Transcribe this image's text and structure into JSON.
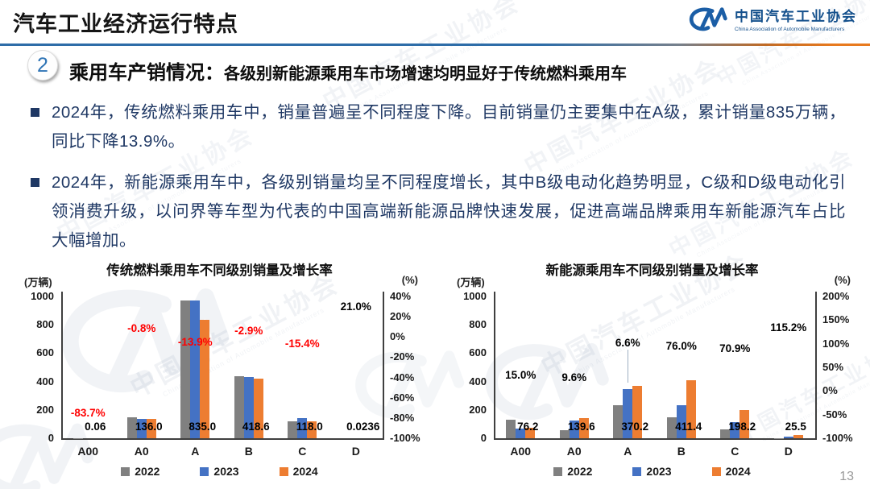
{
  "header": {
    "title": "汽车工业经济运行特点",
    "logo_cn": "中国汽车工业协会",
    "logo_en": "China Association of Automobile Manufacturers"
  },
  "section": {
    "badge": "2",
    "heading": "乘用车产销情况：",
    "subheading": "各级别新能源乘用车市场增速均明显好于传统燃料乘用车"
  },
  "bullets": [
    "2024年，传统燃料乘用车中，销量普遍呈不同程度下降。目前销量仍主要集中在A级，累计销量835万辆，同比下降13.9%。",
    "2024年，新能源乘用车中，各级别销量均呈不同程度增长，其中B级电动化趋势明显，C级和D级电动化引领消费升级，以问界等车型为代表的中国高端新能源品牌快速发展，促进高端品牌乘用车新能源汽车占比大幅增加。"
  ],
  "watermark": {
    "cn": "中国汽车工业协会",
    "en": "China Association of Automobile Manufacturers"
  },
  "colors": {
    "bar_2022": "#808080",
    "bar_2023": "#4472C4",
    "bar_2024": "#ED7D31",
    "negative_label": "#FF0000",
    "positive_label": "#000000",
    "body_text": "#1F3864",
    "accent_blue": "#2E74B5",
    "accent_orange": "#E87A1E"
  },
  "page_number": "13",
  "chart_data": [
    {
      "type": "bar",
      "title": "传统燃料乘用车不同级别销量及增长率",
      "categories": [
        "A00",
        "A0",
        "A",
        "B",
        "C",
        "D"
      ],
      "axis_left": {
        "unit": "(万辆)",
        "range": [
          0,
          1000
        ],
        "ticks": [
          0,
          200,
          400,
          600,
          800,
          1000
        ]
      },
      "axis_right": {
        "unit": "(%)",
        "range": [
          -100,
          40
        ],
        "ticks": [
          40,
          20,
          0,
          -20,
          -40,
          -60,
          -80,
          -100
        ]
      },
      "grid": false,
      "legend_position": "bottom",
      "series": [
        {
          "name": "2022",
          "color": "#808080",
          "values": [
            1.0,
            145,
            972,
            440,
            122,
            0.03
          ]
        },
        {
          "name": "2023",
          "color": "#4472C4",
          "values": [
            0.37,
            137.1,
            969.8,
            431.1,
            139.5,
            0.02
          ]
        },
        {
          "name": "2024",
          "color": "#ED7D31",
          "values": [
            0.06,
            136.0,
            835.0,
            418.6,
            118.0,
            0.0236
          ]
        }
      ],
      "value_labels": [
        "0.06",
        "136.0",
        "835.0",
        "418.6",
        "118.0",
        "0.0236"
      ],
      "growth_labels": [
        {
          "text": "-83.7%",
          "value": -83.7,
          "color": "#FF0000"
        },
        {
          "text": "-0.8%",
          "value": -0.8,
          "color": "#FF0000"
        },
        {
          "text": "-13.9%",
          "value": -13.9,
          "color": "#FF0000"
        },
        {
          "text": "-2.9%",
          "value": -2.9,
          "color": "#FF0000"
        },
        {
          "text": "-15.4%",
          "value": -15.4,
          "color": "#FF0000"
        },
        {
          "text": "21.0%",
          "value": 21.0,
          "color": "#000000"
        }
      ]
    },
    {
      "type": "bar",
      "title": "新能源乘用车不同级别销量及增长率",
      "categories": [
        "A00",
        "A0",
        "A",
        "B",
        "C",
        "D"
      ],
      "axis_left": {
        "unit": "(万辆)",
        "range": [
          0,
          1000
        ],
        "ticks": [
          0,
          200,
          400,
          600,
          800,
          1000
        ]
      },
      "axis_right": {
        "unit": "(%)",
        "range": [
          -100,
          200
        ],
        "ticks": [
          200,
          150,
          100,
          50,
          0,
          -50,
          -100
        ]
      },
      "grid": false,
      "legend_position": "bottom",
      "series": [
        {
          "name": "2022",
          "color": "#808080",
          "values": [
            130,
            55,
            235,
            150,
            65,
            2
          ]
        },
        {
          "name": "2023",
          "color": "#4472C4",
          "values": [
            66.3,
            127.4,
            347.3,
            233.8,
            116.0,
            11.9
          ]
        },
        {
          "name": "2024",
          "color": "#ED7D31",
          "values": [
            76.2,
            139.6,
            370.2,
            411.4,
            198.2,
            25.5
          ]
        }
      ],
      "value_labels": [
        "76.2",
        "139.6",
        "370.2",
        "411.4",
        "198.2",
        "25.5"
      ],
      "growth_labels": [
        {
          "text": "15.0%",
          "value": 15.0,
          "color": "#000000"
        },
        {
          "text": "9.6%",
          "value": 9.6,
          "color": "#000000"
        },
        {
          "text": "6.6%",
          "value": 6.6,
          "color": "#000000",
          "dy": -44,
          "leader": true
        },
        {
          "text": "76.0%",
          "value": 76.0,
          "color": "#000000"
        },
        {
          "text": "70.9%",
          "value": 70.9,
          "color": "#000000"
        },
        {
          "text": "115.2%",
          "value": 115.2,
          "color": "#000000"
        }
      ]
    }
  ]
}
